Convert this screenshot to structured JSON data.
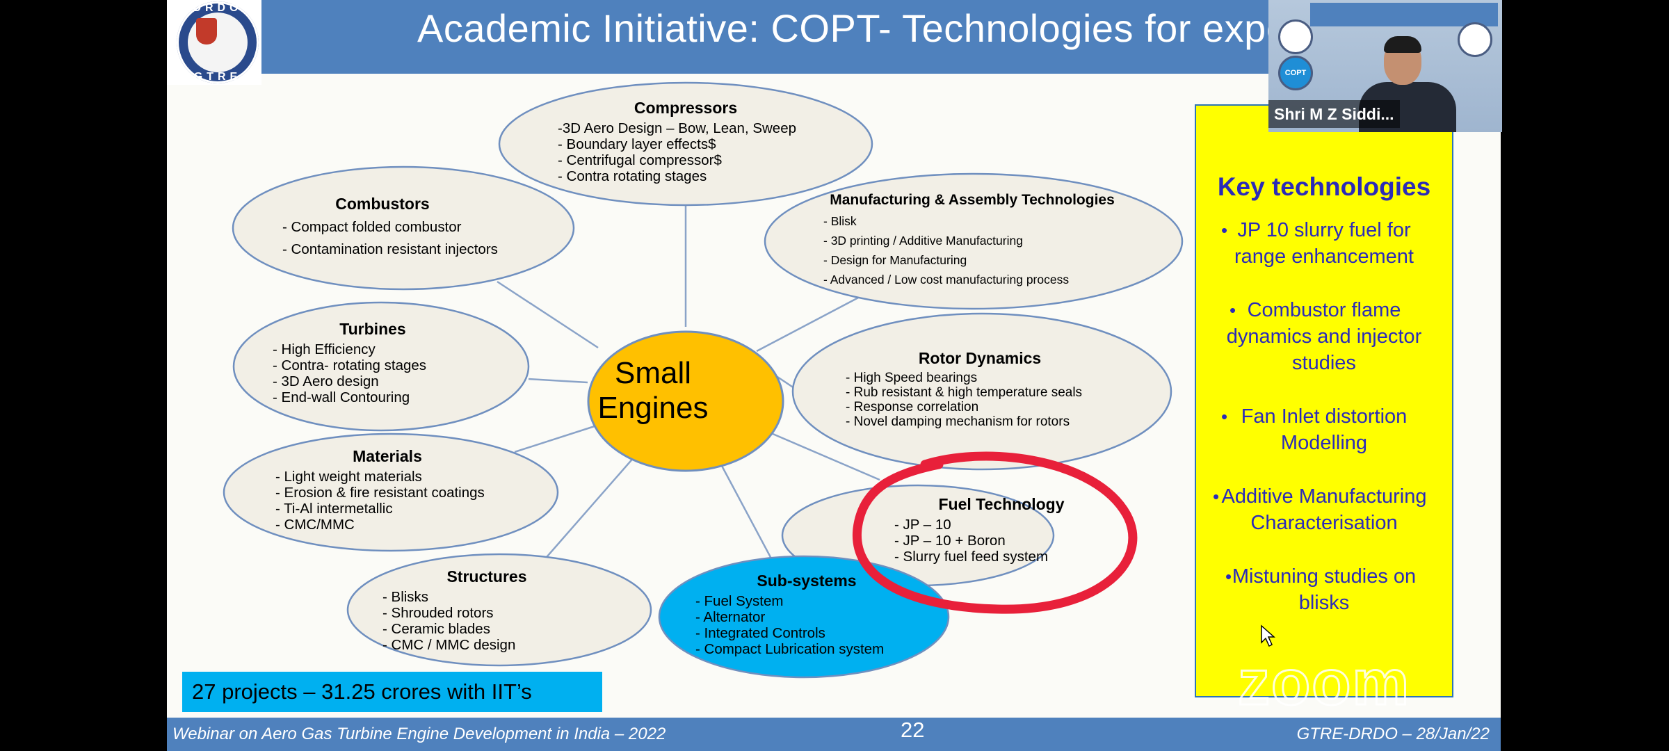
{
  "slide": {
    "title": "Academic Initiative: COPT- Technologies for expendabl",
    "logo": {
      "top_text": "DRDO",
      "bottom_text": "GTRE"
    },
    "center": {
      "line1": "Small",
      "line2": "Engines"
    },
    "nodes": {
      "compressors": {
        "title": "Compressors",
        "items": [
          "-3D Aero Design – Bow, Lean, Sweep",
          "- Boundary layer effects$",
          "- Centrifugal compressor$",
          "- Contra rotating stages"
        ]
      },
      "combustors": {
        "title": "Combustors",
        "items": [
          "- Compact folded combustor",
          "- Contamination resistant injectors"
        ]
      },
      "manufacturing": {
        "title": "Manufacturing & Assembly Technologies",
        "items": [
          "- Blisk",
          "- 3D printing / Additive Manufacturing",
          "- Design for Manufacturing",
          "- Advanced / Low cost manufacturing process"
        ]
      },
      "turbines": {
        "title": "Turbines",
        "items": [
          "- High Efficiency",
          "- Contra- rotating stages",
          "- 3D Aero design",
          "- End-wall Contouring"
        ]
      },
      "rotor": {
        "title": "Rotor Dynamics",
        "items": [
          "- High Speed bearings",
          "- Rub resistant & high temperature seals",
          "- Response correlation",
          "- Novel damping mechanism for rotors"
        ]
      },
      "materials": {
        "title": "Materials",
        "items": [
          "- Light weight materials",
          "- Erosion & fire resistant coatings",
          "- Ti-Al intermetallic",
          "- CMC/MMC"
        ]
      },
      "fuel": {
        "title": "Fuel Technology",
        "items": [
          "- JP – 10",
          "- JP – 10 + Boron",
          "- Slurry fuel feed system"
        ]
      },
      "structures": {
        "title": "Structures",
        "items": [
          "- Blisks",
          "- Shrouded rotors",
          "- Ceramic blades",
          "- CMC / MMC design"
        ]
      },
      "subsystems": {
        "title": "Sub-systems",
        "items": [
          "- Fuel System",
          "- Alternator",
          "- Integrated Controls",
          "- Compact Lubrication system"
        ]
      }
    },
    "banner": "27 projects – 31.25 crores with IIT’s",
    "key_technologies": {
      "title": "Key technologies",
      "items": [
        "JP 10 slurry fuel for range enhancement",
        "Combustor flame dynamics and injector studies",
        "Fan Inlet distortion Modelling",
        "Additive Manufacturing Characterisation",
        "Mistuning studies on blisks"
      ]
    },
    "footer": {
      "left": "Webinar on Aero Gas Turbine Engine Development in India – 2022",
      "page": "22",
      "right": "GTRE-DRDO – 28/Jan/22"
    }
  },
  "colors": {
    "title_bar": "#4f81bd",
    "bubble_fill": "#f2efe6",
    "bubble_stroke": "#6f8fbf",
    "center": "#ffc000",
    "subsystems": "#00b0f0",
    "highlight": "#e8203a",
    "key_panel": "#ffff00",
    "key_text": "#2b2bb8"
  },
  "video": {
    "participant_name": "Shri M Z Siddi...",
    "badge": "COPT"
  },
  "watermark": "zoom"
}
